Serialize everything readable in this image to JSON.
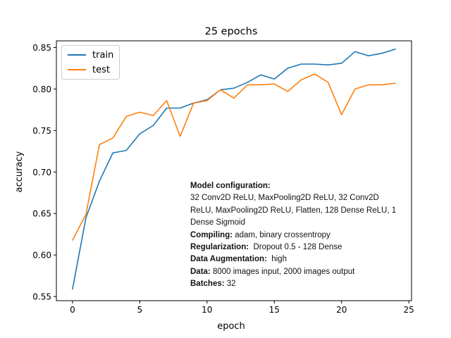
{
  "chart_data": {
    "type": "line",
    "title": "25 epochs",
    "xlabel": "epoch",
    "ylabel": "accuracy",
    "xlim": [
      -1.2,
      25.2
    ],
    "ylim": [
      0.545,
      0.858
    ],
    "xticks": [
      0,
      5,
      10,
      15,
      20,
      25
    ],
    "yticks": [
      0.55,
      0.6,
      0.65,
      0.7,
      0.75,
      0.8,
      0.85
    ],
    "ytick_labels": [
      "0.55",
      "0.60",
      "0.65",
      "0.70",
      "0.75",
      "0.80",
      "0.85"
    ],
    "grid": false,
    "legend_position": "top-left",
    "x": [
      0,
      1,
      2,
      3,
      4,
      5,
      6,
      7,
      8,
      9,
      10,
      11,
      12,
      13,
      14,
      15,
      16,
      17,
      18,
      19,
      20,
      21,
      22,
      23,
      24
    ],
    "series": [
      {
        "name": "train",
        "color": "#1f77b4",
        "values": [
          0.559,
          0.645,
          0.689,
          0.723,
          0.726,
          0.746,
          0.756,
          0.777,
          0.777,
          0.783,
          0.787,
          0.799,
          0.801,
          0.808,
          0.817,
          0.812,
          0.825,
          0.83,
          0.83,
          0.829,
          0.831,
          0.845,
          0.84,
          0.843,
          0.848
        ]
      },
      {
        "name": "test",
        "color": "#ff7f0e",
        "values": [
          0.618,
          0.649,
          0.733,
          0.741,
          0.767,
          0.772,
          0.768,
          0.786,
          0.743,
          0.783,
          0.786,
          0.799,
          0.789,
          0.805,
          0.805,
          0.806,
          0.797,
          0.811,
          0.818,
          0.808,
          0.769,
          0.8,
          0.805,
          0.805,
          0.807
        ]
      }
    ],
    "annotation": [
      {
        "label": "Model configuration:",
        "value": ""
      },
      {
        "label": "",
        "value": "32 Conv2D ReLU, MaxPooling2D ReLU, 32 Conv2D"
      },
      {
        "label": "",
        "value": "ReLU, MaxPooling2D ReLU, Flatten, 128 Dense ReLU, 1"
      },
      {
        "label": "",
        "value": "Dense Sigmoid"
      },
      {
        "label": "Compiling:",
        "value": " adam, binary crossentropy"
      },
      {
        "label": "Regularization:",
        "value": "  Dropout 0.5 - 128 Dense"
      },
      {
        "label": "Data Augmentation:",
        "value": "  high"
      },
      {
        "label": "Data:",
        "value": " 8000 images input, 2000 images output"
      },
      {
        "label": "Batches:",
        "value": " 32"
      }
    ]
  }
}
